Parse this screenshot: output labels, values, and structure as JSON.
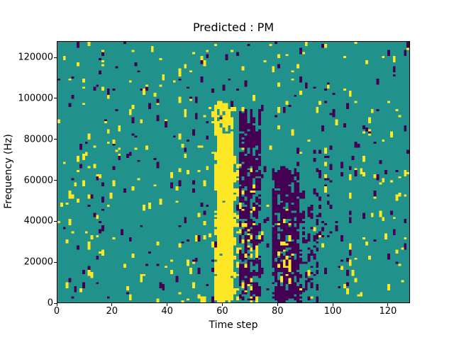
{
  "chart_data": {
    "type": "heatmap",
    "title": "Predicted : PM",
    "xlabel": "Time step",
    "ylabel": "Frequency (Hz)",
    "x_range": [
      0,
      128
    ],
    "y_range": [
      0,
      128000
    ],
    "x_ticks": [
      0,
      20,
      40,
      60,
      80,
      100,
      120
    ],
    "y_ticks": [
      0,
      20000,
      40000,
      60000,
      80000,
      100000,
      120000
    ],
    "colormap": "viridis",
    "legend": "none",
    "grid": false,
    "pattern": {
      "comment": "sparse ternary spectrogram mask: teal background with scattered yellow/purple vertical dashes; dense yellow burst near t=58-66 below 98kHz, dark purple bursts near t=66-74 and t=78-95 below ~65kHz",
      "seed": 1337,
      "cols": 128,
      "rows": 128,
      "palette": [
        "#440154",
        "#21918c",
        "#fde725"
      ],
      "background_index": 1,
      "noise": [
        {
          "color_index": 2,
          "density": 0.018,
          "run_max": 3
        },
        {
          "color_index": 0,
          "density": 0.014,
          "run_max": 3
        }
      ],
      "bands": [
        {
          "cols": [
            57,
            64
          ],
          "rows": [
            0,
            98
          ],
          "color_index": 2,
          "density": 0.4,
          "run_max": 4
        },
        {
          "cols": [
            58,
            64
          ],
          "rows": [
            0,
            80
          ],
          "color_index": 2,
          "density": 0.75,
          "run_max": 5
        },
        {
          "cols": [
            64,
            67
          ],
          "rows": [
            0,
            70
          ],
          "color_index": 2,
          "density": 0.25,
          "run_max": 3
        },
        {
          "cols": [
            66,
            74
          ],
          "rows": [
            0,
            92
          ],
          "color_index": 0,
          "density": 0.4,
          "run_max": 4
        },
        {
          "cols": [
            67,
            73
          ],
          "rows": [
            0,
            60
          ],
          "color_index": 2,
          "density": 0.12,
          "run_max": 2
        },
        {
          "cols": [
            78,
            88
          ],
          "rows": [
            0,
            64
          ],
          "color_index": 0,
          "density": 0.45,
          "run_max": 4
        },
        {
          "cols": [
            80,
            85
          ],
          "rows": [
            8,
            40
          ],
          "color_index": 2,
          "density": 0.15,
          "run_max": 2
        },
        {
          "cols": [
            88,
            95
          ],
          "rows": [
            0,
            55
          ],
          "color_index": 0,
          "density": 0.15,
          "run_max": 3
        },
        {
          "cols": [
            95,
            100
          ],
          "rows": [
            30,
            75
          ],
          "color_index": 0,
          "density": 0.1,
          "run_max": 2
        }
      ]
    }
  }
}
